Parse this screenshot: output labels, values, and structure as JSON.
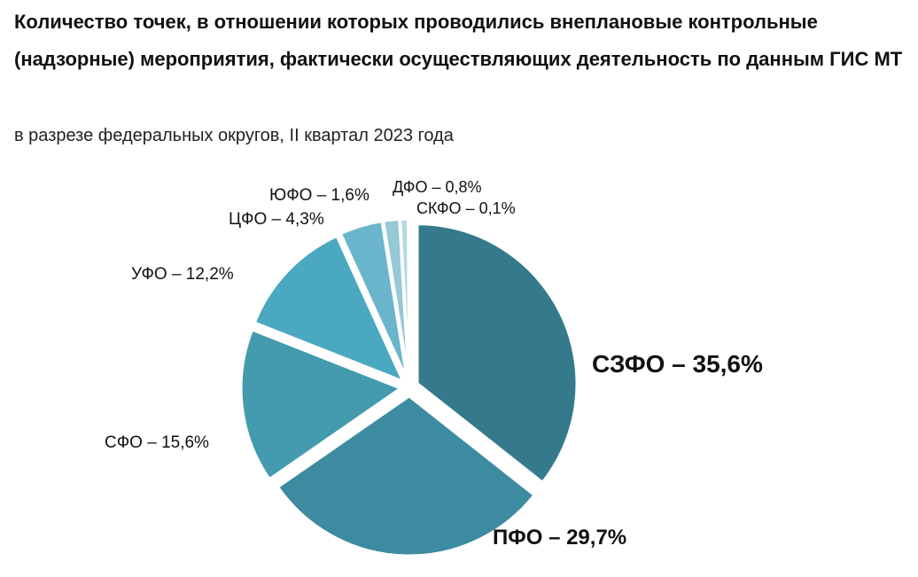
{
  "title": "Количество точек, в отношении которых проводились внеплановые контрольные (надзорные) мероприятия, фактически осуществляющих деятельность по данным ГИС МТ",
  "subtitle": "в разрезе федеральных округов, II квартал 2023 года",
  "chart_data": {
    "type": "pie",
    "title": "Количество точек, в отношении которых проводились внеплановые контрольные (надзорные) мероприятия, фактически осуществляющих деятельность по данным ГИС МТ",
    "subtitle": "в разрезе федеральных округов, II квартал 2023 года",
    "start": "12 o'clock",
    "direction": "clockwise",
    "exploded": true,
    "slices": [
      {
        "name": "СЗФО",
        "value": 35.6,
        "label": "СЗФО – 35,6%",
        "color": "#347a8c",
        "label_style": "bold-large"
      },
      {
        "name": "ПФО",
        "value": 29.7,
        "label": "ПФО – 29,7%",
        "color": "#3d8ba0",
        "label_style": "bold-medium"
      },
      {
        "name": "СФО",
        "value": 15.6,
        "label": "СФО – 15,6%",
        "color": "#449bb0",
        "label_style": "normal"
      },
      {
        "name": "УФО",
        "value": 12.2,
        "label": "УФО – 12,2%",
        "color": "#4aa8c0",
        "label_style": "normal"
      },
      {
        "name": "ЦФО",
        "value": 4.3,
        "label": "ЦФО – 4,3%",
        "color": "#6ab5cb",
        "label_style": "normal"
      },
      {
        "name": "ЮФО",
        "value": 1.6,
        "label": "ЮФО – 1,6%",
        "color": "#96c8d6",
        "label_style": "normal"
      },
      {
        "name": "ДФО",
        "value": 0.8,
        "label": "ДФО – 0,8%",
        "color": "#b7dae3",
        "label_style": "normal"
      },
      {
        "name": "СКФО",
        "value": 0.1,
        "label": "СКФО – 0,1%",
        "color": "#d2e8ee",
        "label_style": "normal"
      }
    ]
  }
}
